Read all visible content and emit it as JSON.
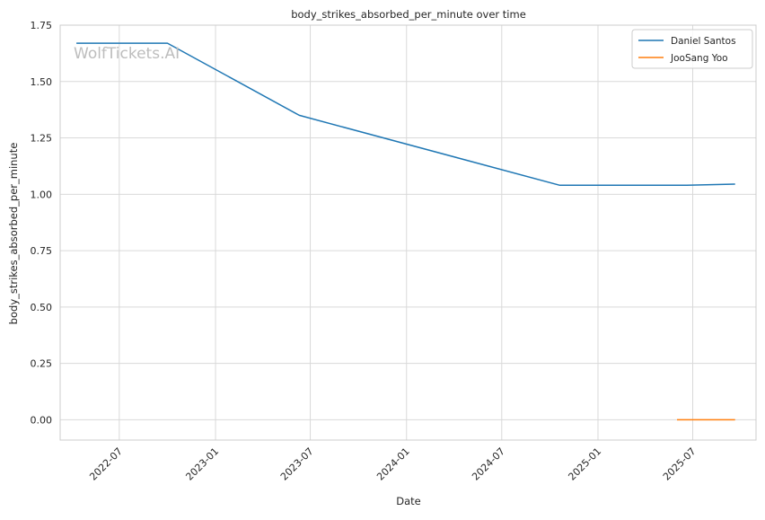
{
  "chart_data": {
    "type": "line",
    "title": "body_strikes_absorbed_per_minute over time",
    "xlabel": "Date",
    "ylabel": "body_strikes_absorbed_per_minute",
    "ylim": [
      -0.09,
      1.75
    ],
    "xlim": [
      "2022-03-10",
      "2025-10-30"
    ],
    "y_ticks": [
      "0.00",
      "0.25",
      "0.50",
      "0.75",
      "1.00",
      "1.25",
      "1.50",
      "1.75"
    ],
    "x_ticks": [
      "2022-07",
      "2023-01",
      "2023-07",
      "2024-01",
      "2024-07",
      "2025-01",
      "2025-07"
    ],
    "grid": true,
    "legend_position": "top-right",
    "watermark": "WolfTickets.AI",
    "series": [
      {
        "name": "Daniel Santos",
        "color": "#1f77b4",
        "points": [
          {
            "x": "2022-04-10",
            "y": 1.67
          },
          {
            "x": "2022-10-01",
            "y": 1.67
          },
          {
            "x": "2023-06-10",
            "y": 1.35
          },
          {
            "x": "2024-10-20",
            "y": 1.04
          },
          {
            "x": "2025-06-20",
            "y": 1.04
          },
          {
            "x": "2025-09-20",
            "y": 1.045
          }
        ]
      },
      {
        "name": "JooSang Yoo",
        "color": "#ff7f0e",
        "points": [
          {
            "x": "2025-06-01",
            "y": 0.0
          },
          {
            "x": "2025-09-20",
            "y": 0.0
          }
        ]
      }
    ]
  }
}
